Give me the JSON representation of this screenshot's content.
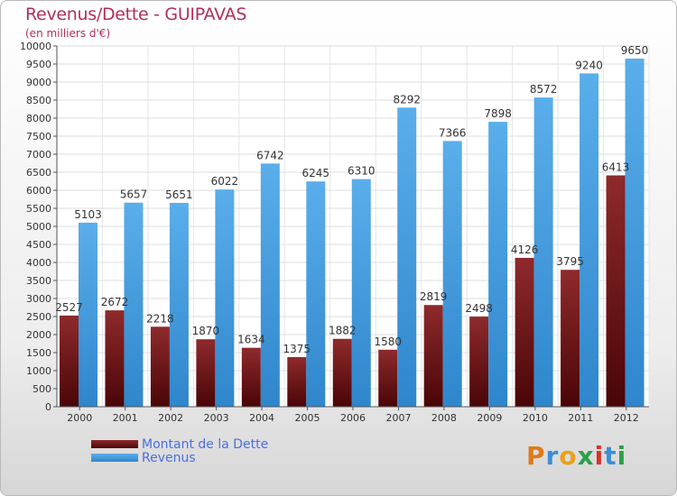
{
  "chart_data": {
    "type": "bar",
    "title": "Revenus/Dette - GUIPAVAS",
    "subtitle": "(en milliers d'€)",
    "xlabel": "",
    "ylabel": "",
    "ylim": [
      0,
      10000
    ],
    "ytick_step": 500,
    "grid": true,
    "legend_position": "bottom-left",
    "categories": [
      "2000",
      "2001",
      "2002",
      "2003",
      "2004",
      "2005",
      "2006",
      "2007",
      "2008",
      "2009",
      "2010",
      "2011",
      "2012"
    ],
    "series": [
      {
        "name": "Montant de la Dette",
        "color": "#7a1518",
        "values": [
          2527,
          2672,
          2218,
          1870,
          1634,
          1375,
          1882,
          1580,
          2819,
          2498,
          4126,
          3795,
          6413
        ]
      },
      {
        "name": "Revenus",
        "color": "#4aa3e6",
        "values": [
          5103,
          5657,
          5651,
          6022,
          6742,
          6245,
          6310,
          8292,
          7366,
          7898,
          8572,
          9240,
          9650
        ]
      }
    ]
  },
  "legend": {
    "debt_label": "Montant de la Dette",
    "revenue_label": "Revenus"
  },
  "brand": {
    "letters": [
      "P",
      "r",
      "o",
      "x",
      "i",
      "t",
      "i"
    ]
  }
}
